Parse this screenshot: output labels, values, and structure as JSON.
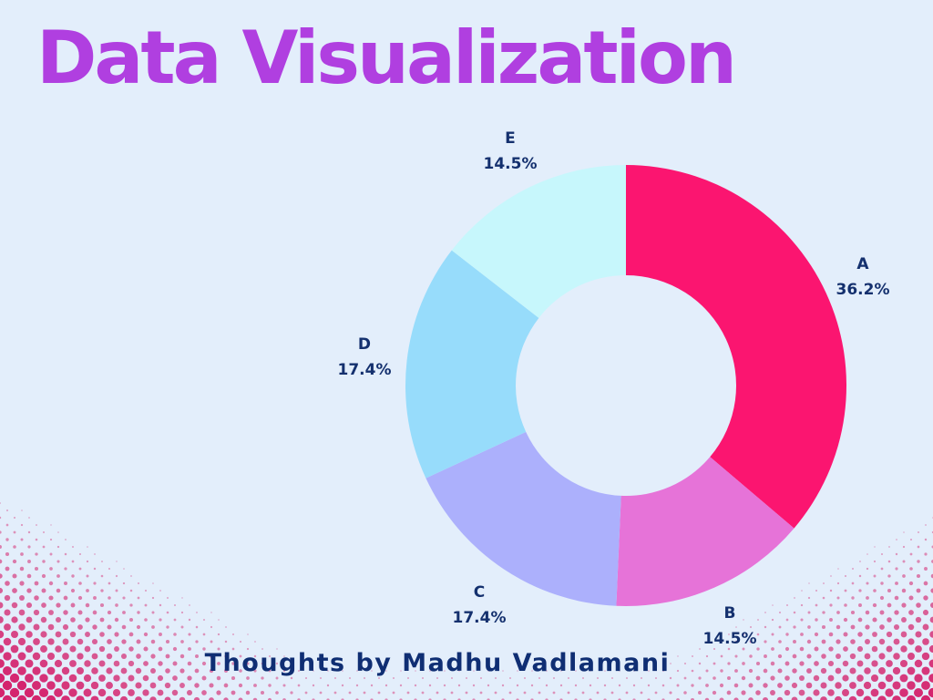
{
  "title": "Data Visualization",
  "footer": "Thoughts by Madhu Vadlamani",
  "colors": {
    "background": "#e3eefb",
    "title": "#b03fe0",
    "label": "#14306e",
    "dots": "#d4246e"
  },
  "chart_data": {
    "type": "pie",
    "subtype": "donut",
    "title": "Data Visualization",
    "categories": [
      "A",
      "B",
      "C",
      "D",
      "E"
    ],
    "values": [
      36.2,
      14.5,
      17.4,
      17.4,
      14.5
    ],
    "unit": "%",
    "colors": [
      "#fb1570",
      "#e673d8",
      "#acb0fc",
      "#97dcfb",
      "#c7f7fc"
    ],
    "start_angle": "12 o'clock, clockwise",
    "hole_ratio": 0.5,
    "legend": "none (labels outside slices)"
  },
  "labels": [
    {
      "name": "A",
      "value": "36.2%"
    },
    {
      "name": "B",
      "value": "14.5%"
    },
    {
      "name": "C",
      "value": "17.4%"
    },
    {
      "name": "D",
      "value": "17.4%"
    },
    {
      "name": "E",
      "value": "14.5%"
    }
  ]
}
